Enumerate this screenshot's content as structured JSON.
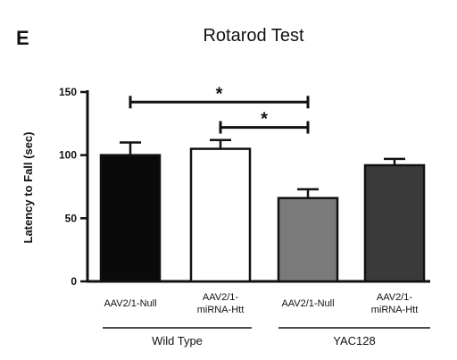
{
  "panel_letter": "E",
  "chart_data": {
    "type": "bar",
    "title": "Rotarod Test",
    "xlabel": "",
    "ylabel": "Latency to Fall (sec)",
    "ylim": [
      0,
      150
    ],
    "yticks": [
      0,
      50,
      100,
      150
    ],
    "grid": false,
    "categories": [
      {
        "line1": "AAV2/1-Null",
        "line2": ""
      },
      {
        "line1": "AAV2/1-",
        "line2": "miRNA-Htt"
      },
      {
        "line1": "AAV2/1-Null",
        "line2": ""
      },
      {
        "line1": "AAV2/1-",
        "line2": "miRNA-Htt"
      }
    ],
    "values": [
      100,
      105,
      66,
      92
    ],
    "errors": [
      10,
      7,
      7,
      5
    ],
    "bar_colors": [
      "#0a0a0a",
      "#ffffff",
      "#7a7a7a",
      "#3a3a3a"
    ],
    "groups": [
      {
        "label": "Wild Type",
        "categories": [
          0,
          1
        ]
      },
      {
        "label": "YAC128",
        "categories": [
          2,
          3
        ]
      }
    ],
    "significance": [
      {
        "from": 0,
        "to": 2,
        "label": "*",
        "y": 142
      },
      {
        "from": 1,
        "to": 2,
        "label": "*",
        "y": 122
      }
    ]
  }
}
